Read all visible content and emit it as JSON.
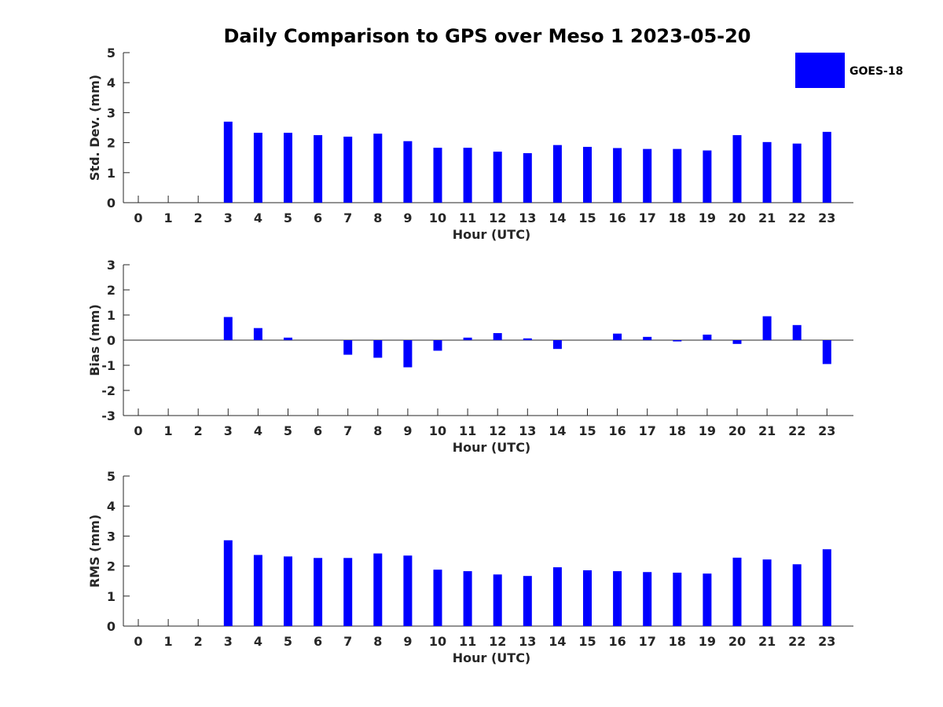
{
  "title": "Daily Comparison to GPS over Meso 1 2023-05-20",
  "legend": {
    "label": "GOES-18",
    "color": "#0000ff"
  },
  "chart_data": [
    {
      "type": "bar",
      "ylabel": "Std. Dev. (mm)",
      "xlabel": "Hour (UTC)",
      "categories": [
        "0",
        "1",
        "2",
        "3",
        "4",
        "5",
        "6",
        "7",
        "8",
        "9",
        "10",
        "11",
        "12",
        "13",
        "14",
        "15",
        "16",
        "17",
        "18",
        "19",
        "20",
        "21",
        "22",
        "23"
      ],
      "ylim": [
        0,
        5
      ],
      "yticks": [
        0,
        1,
        2,
        3,
        4,
        5
      ],
      "series": [
        {
          "name": "GOES-18",
          "color": "#0000ff",
          "values": [
            null,
            null,
            null,
            2.7,
            2.33,
            2.33,
            2.25,
            2.2,
            2.3,
            2.05,
            1.83,
            1.83,
            1.7,
            1.65,
            1.92,
            1.86,
            1.82,
            1.79,
            1.79,
            1.74,
            2.25,
            2.02,
            1.97,
            2.36
          ]
        }
      ]
    },
    {
      "type": "bar",
      "ylabel": "Bias (mm)",
      "xlabel": "Hour (UTC)",
      "categories": [
        "0",
        "1",
        "2",
        "3",
        "4",
        "5",
        "6",
        "7",
        "8",
        "9",
        "10",
        "11",
        "12",
        "13",
        "14",
        "15",
        "16",
        "17",
        "18",
        "19",
        "20",
        "21",
        "22",
        "23"
      ],
      "ylim": [
        -3,
        3
      ],
      "yticks": [
        -3,
        -2,
        -1,
        0,
        1,
        2,
        3
      ],
      "zero_line": true,
      "series": [
        {
          "name": "GOES-18",
          "color": "#0000ff",
          "values": [
            null,
            null,
            null,
            0.92,
            0.48,
            0.1,
            0.0,
            -0.58,
            -0.7,
            -1.08,
            -0.42,
            0.1,
            0.28,
            0.07,
            -0.35,
            0.0,
            0.26,
            0.13,
            -0.05,
            0.22,
            -0.15,
            0.95,
            0.6,
            -0.95
          ]
        }
      ]
    },
    {
      "type": "bar",
      "ylabel": "RMS (mm)",
      "xlabel": "Hour (UTC)",
      "categories": [
        "0",
        "1",
        "2",
        "3",
        "4",
        "5",
        "6",
        "7",
        "8",
        "9",
        "10",
        "11",
        "12",
        "13",
        "14",
        "15",
        "16",
        "17",
        "18",
        "19",
        "20",
        "21",
        "22",
        "23"
      ],
      "ylim": [
        0,
        5
      ],
      "yticks": [
        0,
        1,
        2,
        3,
        4,
        5
      ],
      "series": [
        {
          "name": "GOES-18",
          "color": "#0000ff",
          "values": [
            null,
            null,
            null,
            2.86,
            2.37,
            2.32,
            2.27,
            2.27,
            2.42,
            2.35,
            1.88,
            1.83,
            1.72,
            1.67,
            1.96,
            1.86,
            1.83,
            1.8,
            1.78,
            1.75,
            2.28,
            2.22,
            2.06,
            2.56
          ]
        }
      ]
    }
  ]
}
